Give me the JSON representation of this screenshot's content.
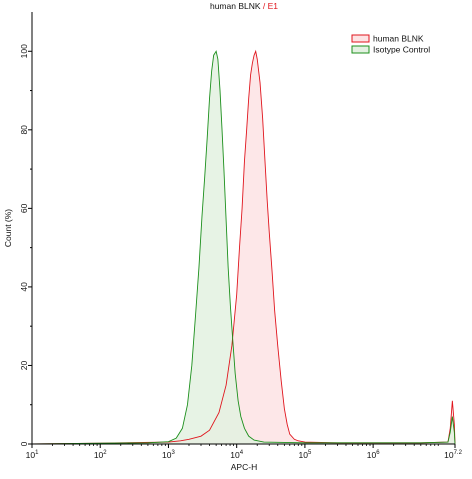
{
  "chart_data": {
    "type": "area",
    "title_part1": "human BLNK",
    "title_sep": " / ",
    "title_part2": "E1",
    "xlabel": "APC-H",
    "ylabel": "Count (%)",
    "x_scale": "log",
    "xlim": [
      10,
      15848932
    ],
    "ylim": [
      0,
      110
    ],
    "y_ticks": [
      0,
      20,
      40,
      60,
      80,
      100
    ],
    "x_ticks": [
      {
        "value": 10,
        "base": "10",
        "exp": "1"
      },
      {
        "value": 100,
        "base": "10",
        "exp": "2"
      },
      {
        "value": 1000,
        "base": "10",
        "exp": "3"
      },
      {
        "value": 10000,
        "base": "10",
        "exp": "4"
      },
      {
        "value": 100000,
        "base": "10",
        "exp": "5"
      },
      {
        "value": 1000000,
        "base": "10",
        "exp": "6"
      },
      {
        "value": 15848932,
        "base": "10",
        "exp": "7.2"
      }
    ],
    "legend_position": "top-right",
    "series": [
      {
        "name": "human BLNK",
        "stroke": "#e0151d",
        "fill": "#fde3e4",
        "points": [
          [
            10,
            0
          ],
          [
            100,
            0.2
          ],
          [
            1000,
            0.5
          ],
          [
            1500,
            0.8
          ],
          [
            2000,
            1.2
          ],
          [
            3000,
            2.0
          ],
          [
            4000,
            3.5
          ],
          [
            5500,
            8
          ],
          [
            7000,
            15
          ],
          [
            8500,
            25
          ],
          [
            10000,
            38
          ],
          [
            11000,
            50
          ],
          [
            12000,
            60
          ],
          [
            13000,
            72
          ],
          [
            14000,
            80
          ],
          [
            15000,
            88
          ],
          [
            16000,
            94
          ],
          [
            17000,
            97
          ],
          [
            18000,
            99
          ],
          [
            19000,
            100
          ],
          [
            20000,
            98
          ],
          [
            22000,
            92
          ],
          [
            24000,
            83
          ],
          [
            26000,
            72
          ],
          [
            28000,
            62
          ],
          [
            30000,
            54
          ],
          [
            33000,
            44
          ],
          [
            36000,
            34
          ],
          [
            40000,
            25
          ],
          [
            45000,
            16
          ],
          [
            50000,
            9
          ],
          [
            55000,
            5
          ],
          [
            60000,
            2.5
          ],
          [
            70000,
            1.2
          ],
          [
            80000,
            0.8
          ],
          [
            100000,
            0.5
          ],
          [
            300000,
            0.3
          ],
          [
            1000000,
            0.3
          ],
          [
            5000000,
            0.3
          ],
          [
            12500000,
            0.5
          ],
          [
            13500000,
            4
          ],
          [
            14500000,
            11
          ],
          [
            15500000,
            5
          ],
          [
            15848932,
            0
          ]
        ]
      },
      {
        "name": "Isotype Control",
        "stroke": "#1c8f1c",
        "fill": "#e3f1e1",
        "points": [
          [
            10,
            0
          ],
          [
            100,
            0.2
          ],
          [
            500,
            0.3
          ],
          [
            1000,
            0.6
          ],
          [
            1300,
            1.5
          ],
          [
            1600,
            4
          ],
          [
            1900,
            10
          ],
          [
            2200,
            20
          ],
          [
            2500,
            33
          ],
          [
            2800,
            45
          ],
          [
            3100,
            58
          ],
          [
            3400,
            68
          ],
          [
            3700,
            78
          ],
          [
            4000,
            88
          ],
          [
            4300,
            95
          ],
          [
            4600,
            99
          ],
          [
            5000,
            100
          ],
          [
            5300,
            98
          ],
          [
            5700,
            90
          ],
          [
            6100,
            80
          ],
          [
            6500,
            70
          ],
          [
            7000,
            57
          ],
          [
            7500,
            45
          ],
          [
            8100,
            35
          ],
          [
            8800,
            26
          ],
          [
            9500,
            18
          ],
          [
            10500,
            11
          ],
          [
            11500,
            7
          ],
          [
            13000,
            4
          ],
          [
            15000,
            2
          ],
          [
            18000,
            1
          ],
          [
            25000,
            0.5
          ],
          [
            100000,
            0.3
          ],
          [
            1000000,
            0.3
          ],
          [
            5000000,
            0.3
          ],
          [
            12500000,
            0.5
          ],
          [
            13500000,
            3
          ],
          [
            14500000,
            7
          ],
          [
            15500000,
            3
          ],
          [
            15848932,
            0
          ]
        ]
      }
    ]
  }
}
